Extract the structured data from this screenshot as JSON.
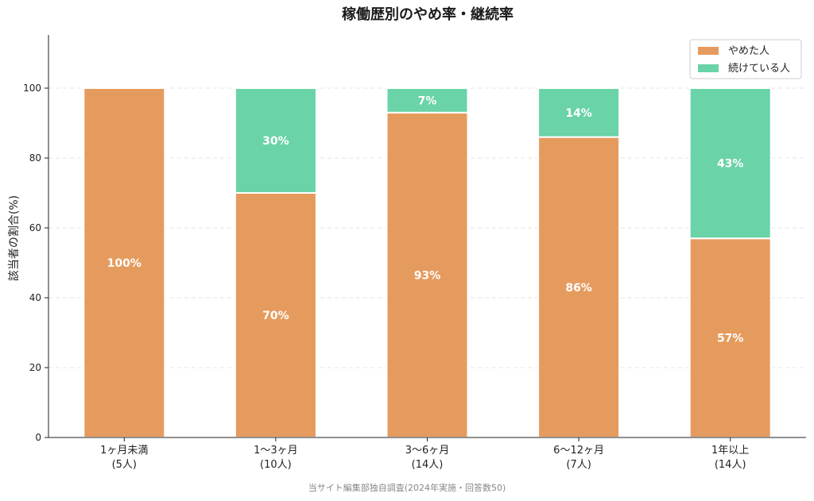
{
  "chart_data": {
    "type": "bar",
    "stacked": true,
    "title": "稼働歴別のやめ率・継続率",
    "ylabel": "該当者の割合(%)",
    "ylim": [
      0,
      115
    ],
    "yticks": [
      0,
      20,
      40,
      60,
      80,
      100
    ],
    "grid": true,
    "legend_position": "top-right",
    "categories": [
      [
        "1ヶ月未満",
        "(5人)"
      ],
      [
        "1〜3ヶ月",
        "(10人)"
      ],
      [
        "3〜6ヶ月",
        "(14人)"
      ],
      [
        "6〜12ヶ月",
        "(7人)"
      ],
      [
        "1年以上",
        "(14人)"
      ]
    ],
    "series": [
      {
        "name": "やめた人",
        "color": "#E69B5E",
        "values": [
          100,
          70,
          93,
          86,
          57
        ],
        "labels": [
          "100%",
          "70%",
          "93%",
          "86%",
          "57%"
        ]
      },
      {
        "name": "続けている人",
        "color": "#6AD3A8",
        "values": [
          0,
          30,
          7,
          14,
          43
        ],
        "labels": [
          "",
          "30%",
          "7%",
          "14%",
          "43%"
        ]
      }
    ],
    "footnote": "当サイト編集部独自調査(2024年実施・回答数50)"
  }
}
